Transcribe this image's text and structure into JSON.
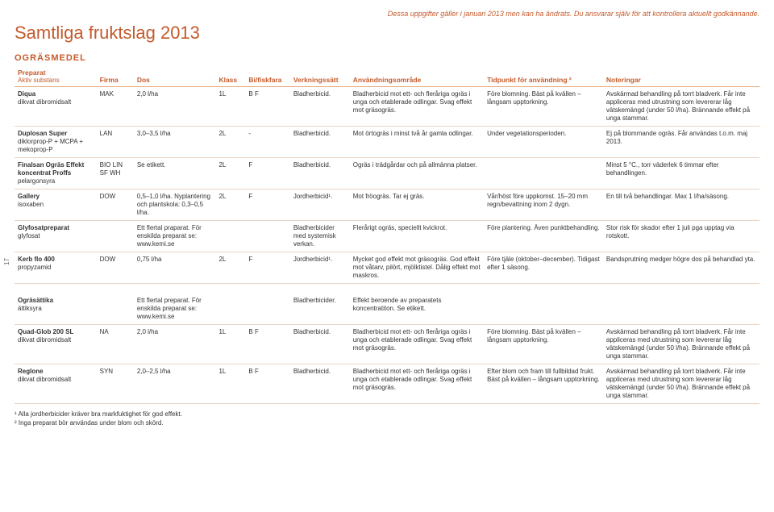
{
  "header_note": "Dessa uppgifter gäller i januari 2013 men kan ha ändrats. Du ansvarar själv för att kontrollera aktuellt godkännande.",
  "title": "Samtliga fruktslag 2013",
  "section_title": "OGRÄSMEDEL",
  "page_number": "17",
  "columns": {
    "w1": "11%",
    "w2": "5%",
    "w3": "11%",
    "w4": "4%",
    "w5": "6%",
    "w6": "8%",
    "w7": "18%",
    "w8": "16%",
    "w9": "21%"
  },
  "headers": {
    "preparat": "Preparat",
    "preparat_sub": "Aktiv substans",
    "firma": "Firma",
    "dos": "Dos",
    "klass": "Klass",
    "bifiskfara": "Bi/fiskfara",
    "verkningssatt": "Verkningssätt",
    "anvandning": "Användningsområde",
    "tidpunkt": "Tidpunkt för användning ²",
    "noteringar": "Noteringar"
  },
  "rows": [
    {
      "prep": "Diqua",
      "sub": "dikvat dibromidsalt",
      "firma": "MAK",
      "dos": "2,0 l/ha",
      "klass": "1L",
      "bf": "B F",
      "verk": "Bladherbicid.",
      "anv": "Bladherbicid mot ett- och fleråriga ogräs i unga och etablerade odlingar. Svag effekt mot gräsogräs.",
      "tid": "Före blomning. Bäst på kvällen – långsam upptorkning.",
      "not": "Avskärmad behandling på torrt bladverk. Får inte appliceras med utrustning som levererar låg vätskemängd (under 50 l/ha). Brännande effekt på unga stammar."
    },
    {
      "prep": "Duplosan Super",
      "sub": "diklorprop-P + MCPA + mekoprop-P",
      "firma": "LAN",
      "dos": "3,0–3,5 l/ha",
      "klass": "2L",
      "bf": "-",
      "verk": "Bladherbicid.",
      "anv": "Mot örtogräs i minst två år gamla odlingar.",
      "tid": "Under vegetationsperioden.",
      "not": "Ej på blommande ogräs. Får användas t.o.m. maj 2013."
    },
    {
      "prep": "Finalsan Ogräs Effekt koncentrat Proffs",
      "sub": "pelargonsyra",
      "firma": "BIO LIN SF WH",
      "dos": "Se etikett.",
      "klass": "2L",
      "bf": "F",
      "verk": "Bladherbicid.",
      "anv": "Ogräs i trädgårdar och på allmänna platser.",
      "tid": "",
      "not": "Minst 5 °C., torr väderlek 6 timmar efter behandlingen."
    },
    {
      "prep": "Gallery",
      "sub": "isoxaben",
      "firma": "DOW",
      "dos": "0,5–1,0 l/ha. Nyplantering och plantskola: 0,3–0,5 l/ha.",
      "klass": "2L",
      "bf": "F",
      "verk": "Jordherbicid¹.",
      "anv": "Mot fröogräs. Tar ej gräs.",
      "tid": "Vår/höst före uppkomst. 15–20 mm regn/bevattning inom 2 dygn.",
      "not": "En till två behandlingar. Max 1 l/ha/säsong."
    },
    {
      "prep": "Glyfosatpreparat",
      "sub": "glyfosat",
      "firma": "",
      "dos": "Ett flertal praparat. För enskilda preparat se: www.kemi.se",
      "klass": "",
      "bf": "",
      "verk": "Bladherbicider med systemisk verkan.",
      "anv": "Flerårigt ogräs, speciellt kvickrot.",
      "tid": "Före plantering. Även punktbehandling.",
      "not": "Stor risk för skador efter 1 juli pga upptag via rotskott."
    },
    {
      "prep": "Kerb flo 400",
      "sub": "propyzamid",
      "firma": "DOW",
      "dos": "0,75 l/ha",
      "klass": "2L",
      "bf": "F",
      "verk": "Jordherbicid¹.",
      "anv": "Mycket god effekt mot gräsogräs. God effekt mot våtarv, pilört, mjölktistel. Dålig effekt mot maskros.",
      "tid": "Före tjäle (oktober–december). Tidigast efter 1 säsong.",
      "not": "Bandsprutning medger högre dos på behandlad yta."
    }
  ],
  "rows2": [
    {
      "prep": "Ogräsättika",
      "sub": "ättiksyra",
      "firma": "",
      "dos": "Ett flertal preparat. För enskilda preparat se: www.kemi.se",
      "klass": "",
      "bf": "",
      "verk": "Bladherbicider.",
      "anv": "Effekt beroende av preparatets koncentratiton. Se etikett.",
      "tid": "",
      "not": ""
    },
    {
      "prep": "Quad-Glob 200 SL",
      "sub": "dikvat dibromidsalt",
      "firma": "NA",
      "dos": "2,0 l/ha",
      "klass": "1L",
      "bf": "B F",
      "verk": "Bladherbicid.",
      "anv": "Bladherbicid mot ett- och fleråriga ogräs i unga och etablerade odlingar. Svag effekt mot gräsogräs.",
      "tid": "Före blomning. Bäst på kvällen – långsam upptorkning.",
      "not": "Avskärmad behandling på torrt bladverk. Får inte appliceras med utrustning som levererar låg vätskemängd (under 50 l/ha). Brännande effekt på unga stammar."
    },
    {
      "prep": "Reglone",
      "sub": "dikvat dibromidsalt",
      "firma": "SYN",
      "dos": "2,0–2,5 l/ha",
      "klass": "1L",
      "bf": "B F",
      "verk": "Bladherbicid.",
      "anv": "Bladherbicid mot ett- och fleråriga ogräs i unga och etablerade odlingar. Svag effekt mot gräsogräs.",
      "tid": "Efter blom och fram till fullbildad frukt. Bäst på kvällen – långsam upptorkning.",
      "not": "Avskärmad behandling på torrt bladverk. Får inte appliceras med utrustning som levererar låg vätskemängd (under 50 l/ha). Brännande effekt på unga stammar."
    }
  ],
  "footnotes": {
    "f1": "¹  Alla jordherbicider kräver bra markfuktighet för god effekt.",
    "f2": "²  Inga preparat bör användas under blom och skörd."
  },
  "colors": {
    "accent": "#c55a2c",
    "border_header": "#e8a87c",
    "border_row": "#e8d4c4",
    "text": "#333333",
    "background": "#ffffff"
  }
}
